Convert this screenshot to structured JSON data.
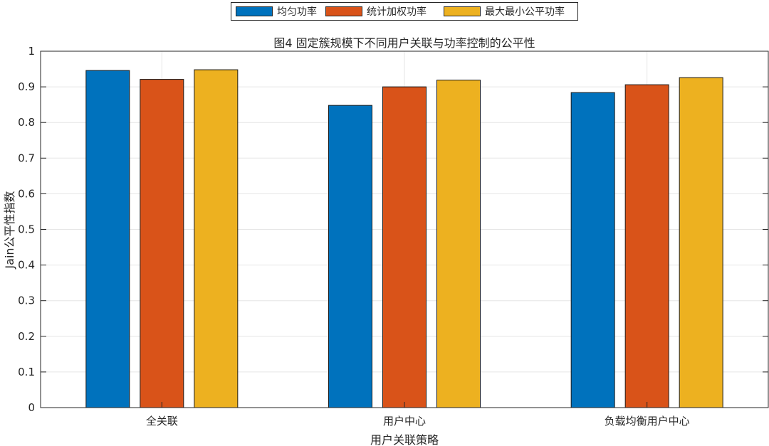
{
  "chart_data": {
    "type": "bar",
    "title": "图4 固定簇规模下不同用户关联与功率控制的公平性",
    "xlabel": "用户关联策略",
    "ylabel": "Jain公平性指数",
    "ylim": [
      0,
      1
    ],
    "yticks": [
      0,
      0.1,
      0.2,
      0.3,
      0.4,
      0.5,
      0.6,
      0.7,
      0.8,
      0.9,
      1
    ],
    "ytick_labels": [
      "0",
      "0.1",
      "0.2",
      "0.3",
      "0.4",
      "0.5",
      "0.6",
      "0.7",
      "0.8",
      "0.9",
      "1"
    ],
    "grid": true,
    "legend_position": "top-center",
    "categories": [
      "全关联",
      "用户中心",
      "负载均衡用户中心"
    ],
    "series": [
      {
        "name": "均匀功率",
        "color": "#0072BD",
        "values": [
          0.946,
          0.848,
          0.884
        ]
      },
      {
        "name": "统计加权功率",
        "color": "#D95319",
        "values": [
          0.921,
          0.9,
          0.906
        ]
      },
      {
        "name": "最大最小公平功率",
        "color": "#EDB120",
        "values": [
          0.948,
          0.919,
          0.926
        ]
      }
    ]
  }
}
